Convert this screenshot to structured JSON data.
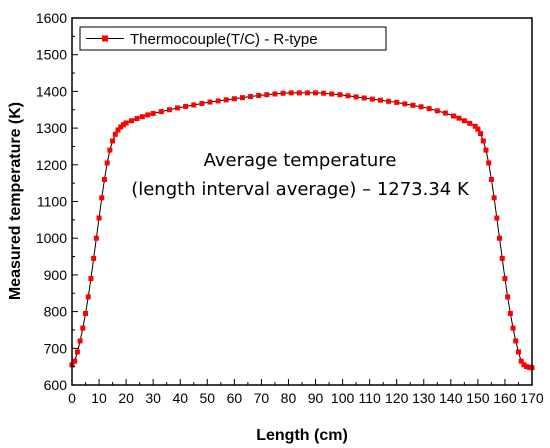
{
  "chart_data": {
    "type": "line",
    "title": "",
    "xlabel": "Length (cm)",
    "ylabel": "Measured temperature (K)",
    "xlim": [
      0,
      170
    ],
    "ylim": [
      600,
      1600
    ],
    "xticks": [
      "0",
      "10",
      "20",
      "30",
      "40",
      "50",
      "60",
      "70",
      "80",
      "90",
      "100",
      "110",
      "120",
      "130",
      "140",
      "150",
      "160",
      "170"
    ],
    "yticks": [
      "600",
      "700",
      "800",
      "900",
      "1000",
      "1100",
      "1200",
      "1300",
      "1400",
      "1500",
      "1600"
    ],
    "grid": false,
    "legend_position": "top-left",
    "annotation": {
      "line1": "Average temperature",
      "line2": "(length interval average) – 1273.34 K"
    },
    "series": [
      {
        "name": "Thermocouple(T/C) - R-type",
        "color": "#ff0000",
        "marker": "square",
        "x": [
          0,
          1,
          2,
          3,
          4,
          5,
          6,
          7,
          8,
          9,
          10,
          11,
          12,
          13,
          14,
          15,
          16,
          17,
          18,
          19,
          20,
          22,
          24,
          26,
          28,
          30,
          33,
          36,
          39,
          42,
          45,
          48,
          51,
          54,
          57,
          60,
          63,
          66,
          69,
          72,
          75,
          78,
          81,
          84,
          87,
          90,
          93,
          96,
          99,
          102,
          105,
          108,
          111,
          114,
          117,
          120,
          123,
          126,
          129,
          132,
          135,
          138,
          141,
          143,
          145,
          147,
          149,
          150,
          151,
          152,
          153,
          154,
          155,
          156,
          157,
          158,
          159,
          160,
          161,
          162,
          163,
          164,
          165,
          166,
          167,
          168,
          169,
          170
        ],
        "y": [
          655,
          665,
          690,
          720,
          755,
          795,
          840,
          890,
          945,
          1000,
          1055,
          1110,
          1160,
          1205,
          1240,
          1265,
          1283,
          1295,
          1303,
          1309,
          1314,
          1320,
          1326,
          1331,
          1336,
          1340,
          1345,
          1350,
          1355,
          1359,
          1363,
          1367,
          1371,
          1374,
          1377,
          1380,
          1383,
          1386,
          1389,
          1391,
          1393,
          1395,
          1396,
          1396,
          1396,
          1396,
          1395,
          1393,
          1391,
          1388,
          1385,
          1382,
          1379,
          1376,
          1373,
          1370,
          1366,
          1362,
          1358,
          1353,
          1347,
          1341,
          1333,
          1327,
          1320,
          1313,
          1305,
          1297,
          1285,
          1265,
          1240,
          1205,
          1160,
          1110,
          1055,
          1000,
          945,
          890,
          840,
          795,
          755,
          720,
          690,
          665,
          655,
          650,
          648,
          647
        ]
      }
    ]
  }
}
